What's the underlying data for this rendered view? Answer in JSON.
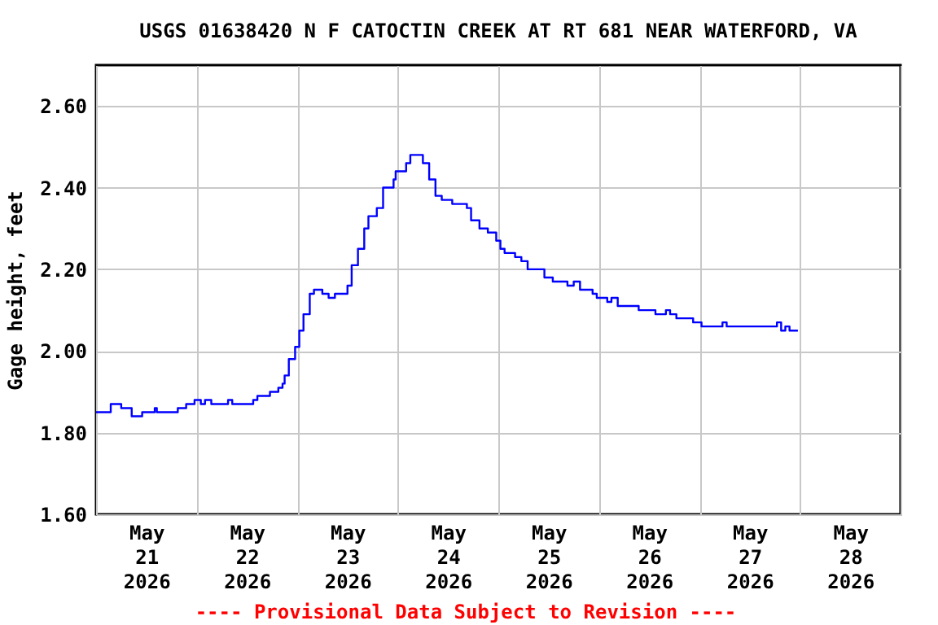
{
  "chart_data": {
    "type": "step",
    "title": "USGS 01638420 N F CATOCTIN CREEK AT RT 681 NEAR WATERFORD, VA",
    "ylabel": "Gage height, feet",
    "annotations": [
      "---- Provisional Data Subject to Revision ----"
    ],
    "x": [
      "2026-05-21T00:00",
      "2026-05-21T02:30",
      "2026-05-21T03:30",
      "2026-05-21T06:00",
      "2026-05-21T08:30",
      "2026-05-21T11:00",
      "2026-05-21T14:00",
      "2026-05-21T14:30",
      "2026-05-21T19:30",
      "2026-05-21T21:30",
      "2026-05-21T23:30",
      "2026-05-22T01:00",
      "2026-05-22T02:00",
      "2026-05-22T03:30",
      "2026-05-22T07:30",
      "2026-05-22T08:30",
      "2026-05-22T13:30",
      "2026-05-22T14:30",
      "2026-05-22T17:30",
      "2026-05-22T19:30",
      "2026-05-22T20:30",
      "2026-05-22T21:00",
      "2026-05-22T22:00",
      "2026-05-22T23:30",
      "2026-05-23T00:30",
      "2026-05-23T01:30",
      "2026-05-23T03:00",
      "2026-05-23T04:00",
      "2026-05-23T06:00",
      "2026-05-23T07:30",
      "2026-05-23T09:00",
      "2026-05-23T12:00",
      "2026-05-23T13:00",
      "2026-05-23T14:30",
      "2026-05-23T16:00",
      "2026-05-23T17:00",
      "2026-05-23T19:00",
      "2026-05-23T20:30",
      "2026-05-23T23:00",
      "2026-05-23T23:30",
      "2026-05-24T02:00",
      "2026-05-24T03:00",
      "2026-05-24T04:30",
      "2026-05-24T06:00",
      "2026-05-24T07:30",
      "2026-05-24T09:00",
      "2026-05-24T10:30",
      "2026-05-24T13:00",
      "2026-05-24T16:30",
      "2026-05-24T17:30",
      "2026-05-24T19:30",
      "2026-05-24T21:30",
      "2026-05-24T23:30",
      "2026-05-25T00:30",
      "2026-05-25T01:30",
      "2026-05-25T04:00",
      "2026-05-25T05:30",
      "2026-05-25T07:00",
      "2026-05-25T11:00",
      "2026-05-25T13:00",
      "2026-05-25T16:30",
      "2026-05-25T18:00",
      "2026-05-25T19:30",
      "2026-05-25T22:30",
      "2026-05-25T23:30",
      "2026-05-26T02:00",
      "2026-05-26T03:00",
      "2026-05-26T04:30",
      "2026-05-26T09:30",
      "2026-05-26T13:30",
      "2026-05-26T16:00",
      "2026-05-26T17:00",
      "2026-05-26T18:30",
      "2026-05-26T22:30",
      "2026-05-27T00:30",
      "2026-05-27T05:30",
      "2026-05-27T06:30",
      "2026-05-27T18:30",
      "2026-05-27T19:30",
      "2026-05-27T20:30",
      "2026-05-27T21:30",
      "2026-05-27T23:30"
    ],
    "series": [
      {
        "color": "#0000ff",
        "values": [
          1.85,
          1.85,
          1.87,
          1.86,
          1.84,
          1.85,
          1.86,
          1.85,
          1.86,
          1.87,
          1.88,
          1.87,
          1.88,
          1.87,
          1.88,
          1.87,
          1.88,
          1.89,
          1.9,
          1.91,
          1.92,
          1.94,
          1.98,
          2.01,
          2.05,
          2.09,
          2.14,
          2.15,
          2.14,
          2.13,
          2.14,
          2.16,
          2.21,
          2.25,
          2.3,
          2.33,
          2.35,
          2.4,
          2.42,
          2.44,
          2.46,
          2.48,
          2.48,
          2.46,
          2.42,
          2.38,
          2.37,
          2.36,
          2.35,
          2.32,
          2.3,
          2.29,
          2.27,
          2.25,
          2.24,
          2.23,
          2.22,
          2.2,
          2.18,
          2.17,
          2.16,
          2.17,
          2.15,
          2.14,
          2.13,
          2.12,
          2.13,
          2.11,
          2.1,
          2.09,
          2.1,
          2.09,
          2.08,
          2.07,
          2.06,
          2.07,
          2.06,
          2.07,
          2.05,
          2.06,
          2.05,
          2.05
        ]
      }
    ],
    "xlim": [
      "2026-05-21T00:00",
      "2026-05-29T00:00"
    ],
    "xticks": [
      {
        "value": "2026-05-21T00:00",
        "label": null
      },
      {
        "value": "2026-05-21T12:00",
        "label": "May 21 2026"
      },
      {
        "value": "2026-05-22T00:00",
        "label": null
      },
      {
        "value": "2026-05-22T12:00",
        "label": "May 22 2026"
      },
      {
        "value": "2026-05-23T00:00",
        "label": null
      },
      {
        "value": "2026-05-23T12:00",
        "label": "May 23 2026"
      },
      {
        "value": "2026-05-24T00:00",
        "label": null
      },
      {
        "value": "2026-05-24T12:00",
        "label": "May 24 2026"
      },
      {
        "value": "2026-05-25T00:00",
        "label": null
      },
      {
        "value": "2026-05-25T12:00",
        "label": "May 25 2026"
      },
      {
        "value": "2026-05-26T00:00",
        "label": null
      },
      {
        "value": "2026-05-26T12:00",
        "label": "May 26 2026"
      },
      {
        "value": "2026-05-27T00:00",
        "label": null
      },
      {
        "value": "2026-05-27T12:00",
        "label": "May 27 2026"
      },
      {
        "value": "2026-05-28T00:00",
        "label": null
      },
      {
        "value": "2026-05-28T12:00",
        "label": "May 28 2026"
      },
      {
        "value": "2026-05-29T00:00",
        "label": null
      }
    ],
    "ylim": [
      1.6,
      2.7
    ],
    "yticks": [
      {
        "value": 1.6,
        "label": "1.60"
      },
      {
        "value": 1.8,
        "label": "1.80"
      },
      {
        "value": 2.0,
        "label": "2.00"
      },
      {
        "value": 2.2,
        "label": "2.20"
      },
      {
        "value": 2.4,
        "label": "2.40"
      },
      {
        "value": 2.6,
        "label": "2.60"
      }
    ],
    "grid": true,
    "line_style": "solid",
    "marker": "none"
  }
}
